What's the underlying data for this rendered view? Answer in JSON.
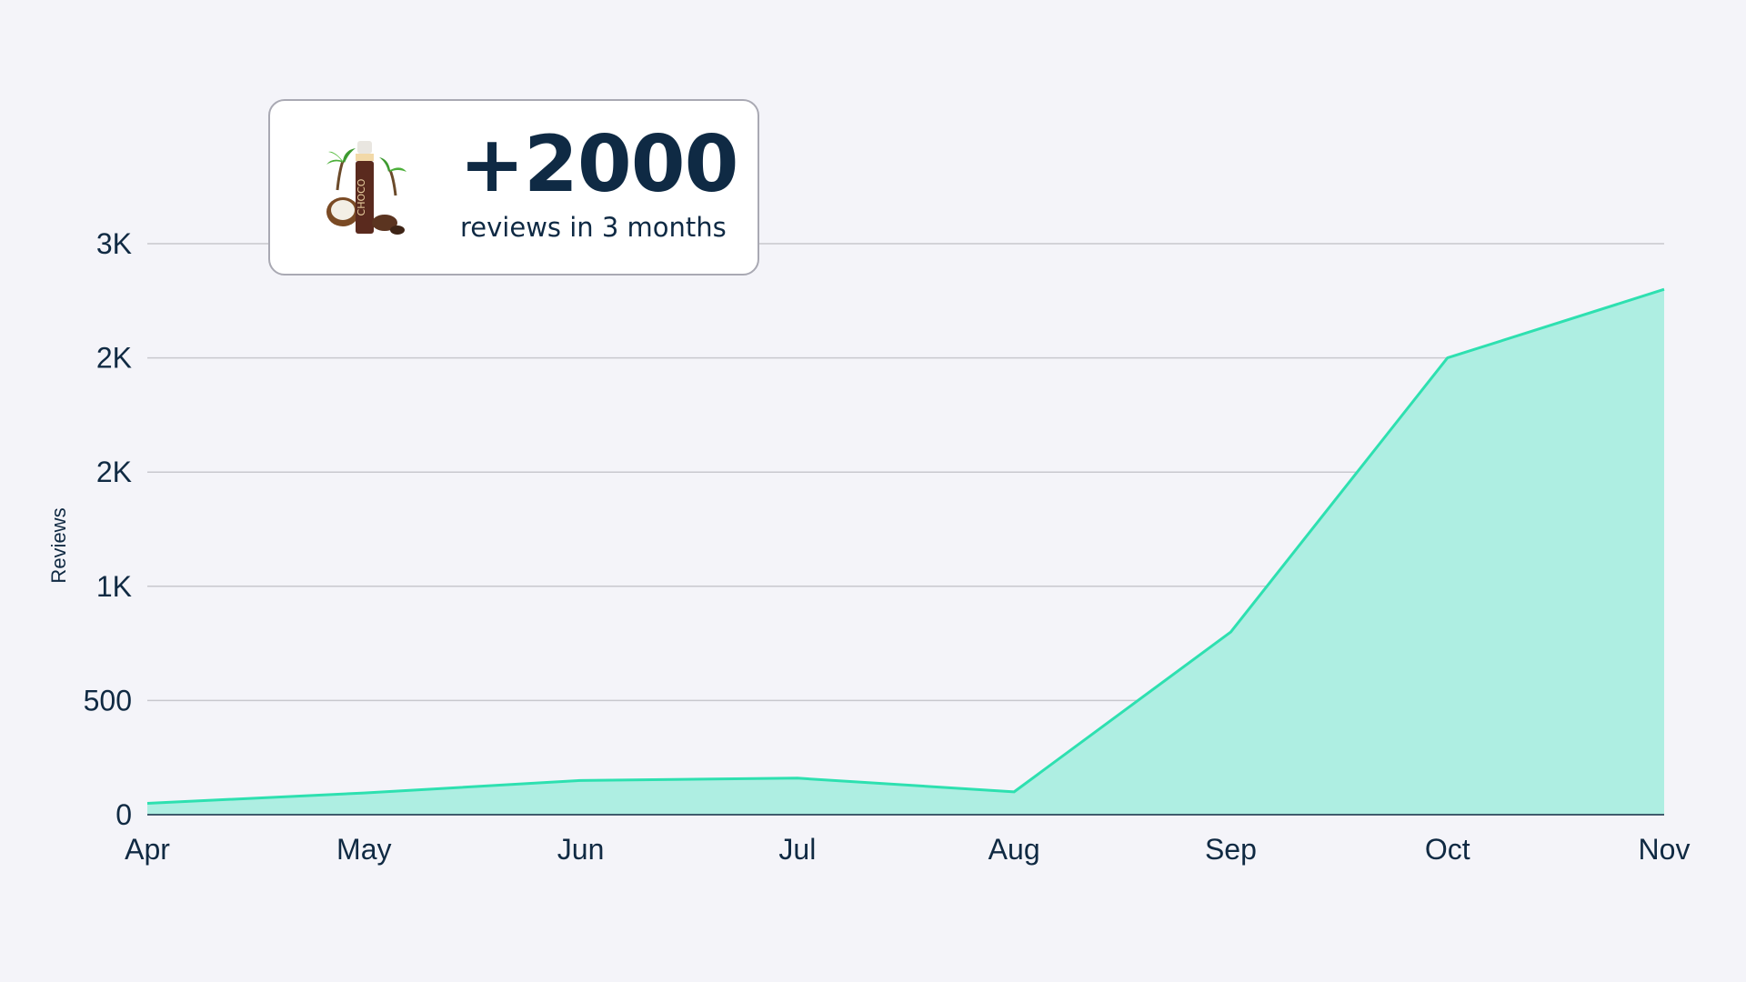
{
  "callout": {
    "headline": "+2000",
    "subline": "reviews in 3 months",
    "product_icon": "choco-tanning-oil-bottle-icon",
    "product_label": "CHOCO"
  },
  "chart_data": {
    "type": "area",
    "ylabel": "Reviews",
    "xlabel": "",
    "categories": [
      "Apr",
      "May",
      "Jun",
      "Jul",
      "Aug",
      "Sep",
      "Oct",
      "Nov"
    ],
    "values": [
      50,
      95,
      150,
      160,
      100,
      800,
      2000,
      2300
    ],
    "ylim": [
      0,
      2500
    ],
    "yticks": [
      {
        "value": 0,
        "label": "0"
      },
      {
        "value": 500,
        "label": "500"
      },
      {
        "value": 1000,
        "label": "1K"
      },
      {
        "value": 1500,
        "label": "2K"
      },
      {
        "value": 2000,
        "label": "2K"
      },
      {
        "value": 2500,
        "label": "3K"
      }
    ],
    "grid": true,
    "colors": {
      "line": "#2ee0b0",
      "fill": "#aeeee2",
      "grid": "#c8c8ce",
      "axis": "#102a43"
    }
  }
}
